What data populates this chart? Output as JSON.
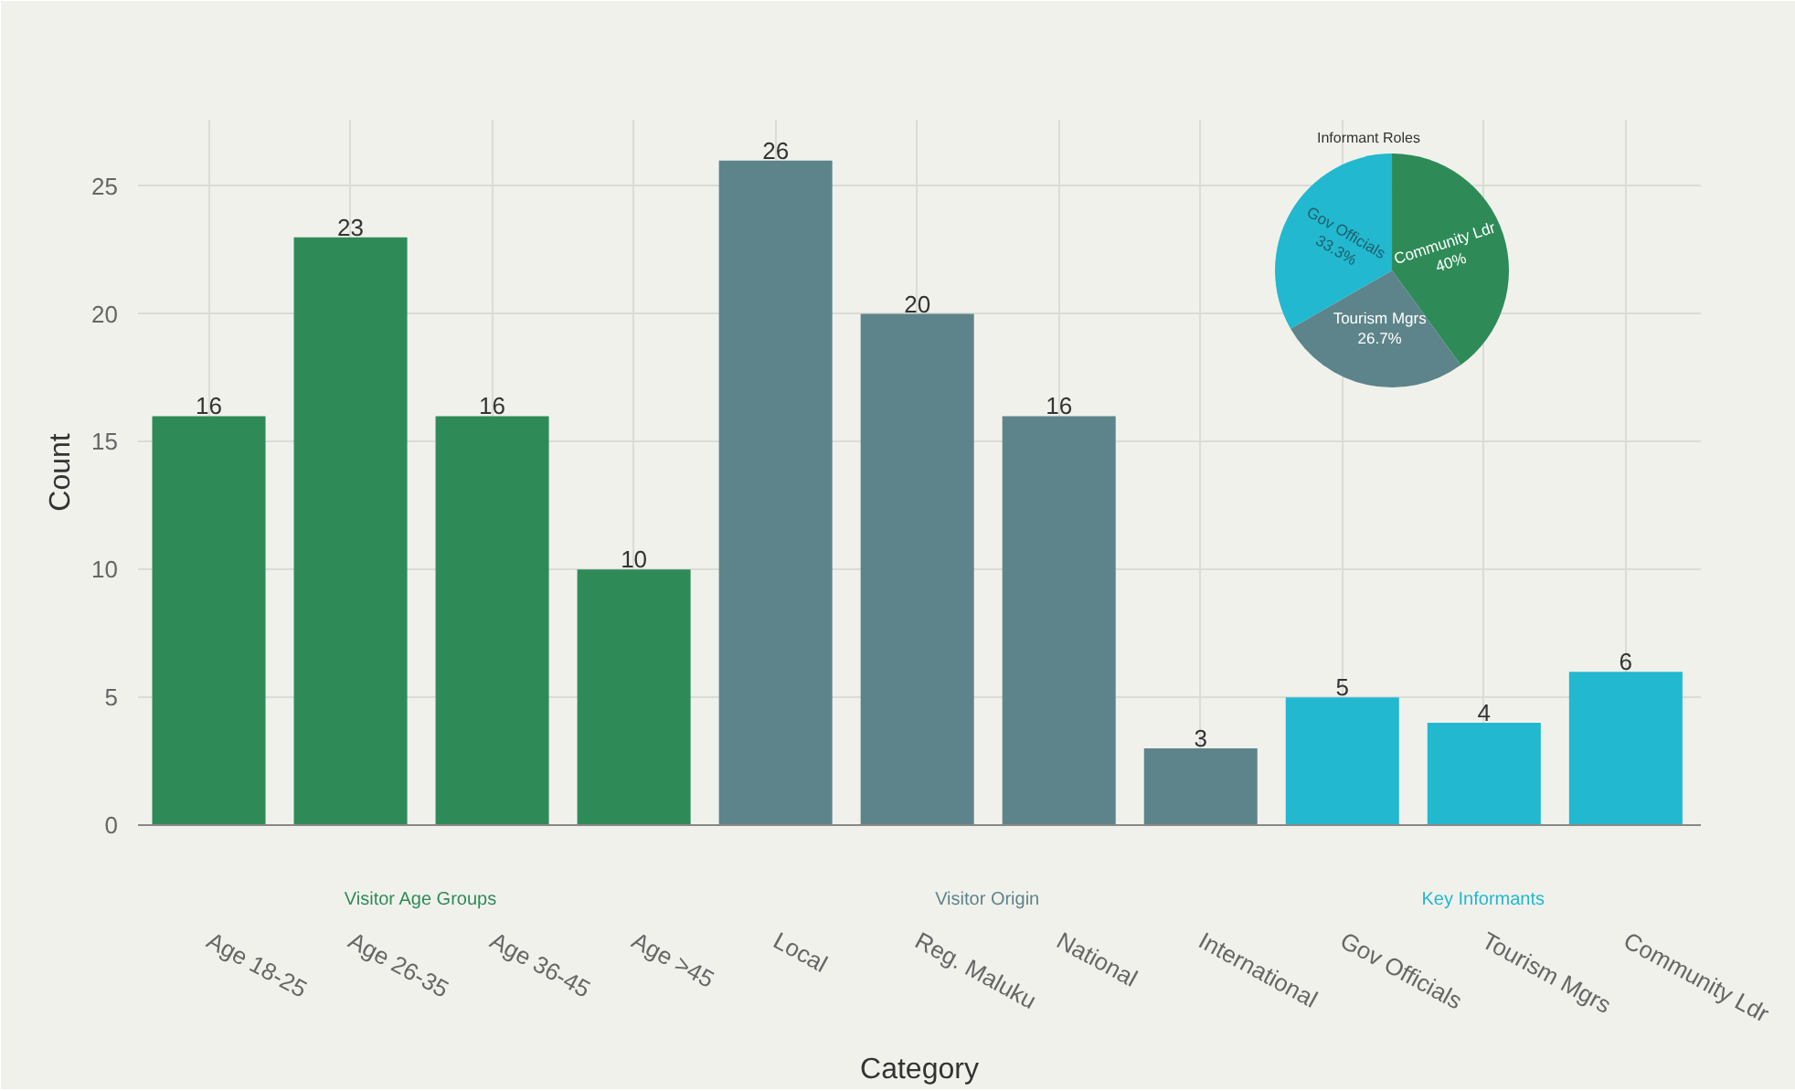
{
  "chart_data": [
    {
      "type": "bar",
      "xlabel": "Category",
      "ylabel": "Count",
      "categories": [
        "Age 18-25",
        "Age 26-35",
        "Age 36-45",
        "Age >45",
        "Local",
        "Reg. Maluku",
        "National",
        "International",
        "Gov Officials",
        "Tourism Mgrs",
        "Community Ldr"
      ],
      "values": [
        16,
        23,
        16,
        10,
        26,
        20,
        16,
        3,
        5,
        4,
        6
      ],
      "colors": [
        "#2e8b57",
        "#2e8b57",
        "#2e8b57",
        "#2e8b57",
        "#5d848a",
        "#5d848a",
        "#5d848a",
        "#5d848a",
        "#22b8cf",
        "#22b8cf",
        "#22b8cf"
      ],
      "ylim": [
        0,
        27.6
      ],
      "yticks": [
        0,
        5,
        10,
        15,
        20,
        25
      ],
      "grid": true,
      "data_labels": true,
      "annotations": [
        "Visitor Age Groups",
        "Visitor Origin",
        "Key Informants"
      ]
    },
    {
      "type": "pie",
      "title": "Informant Roles",
      "categories": [
        "Community Ldr",
        "Tourism Mgrs",
        "Gov Officials"
      ],
      "values": [
        40,
        26.7,
        33.3
      ],
      "colors": [
        "#2e8b57",
        "#5d848a",
        "#22b8cf"
      ],
      "value_labels": [
        "40%",
        "26.7%",
        "33.3%"
      ]
    }
  ]
}
